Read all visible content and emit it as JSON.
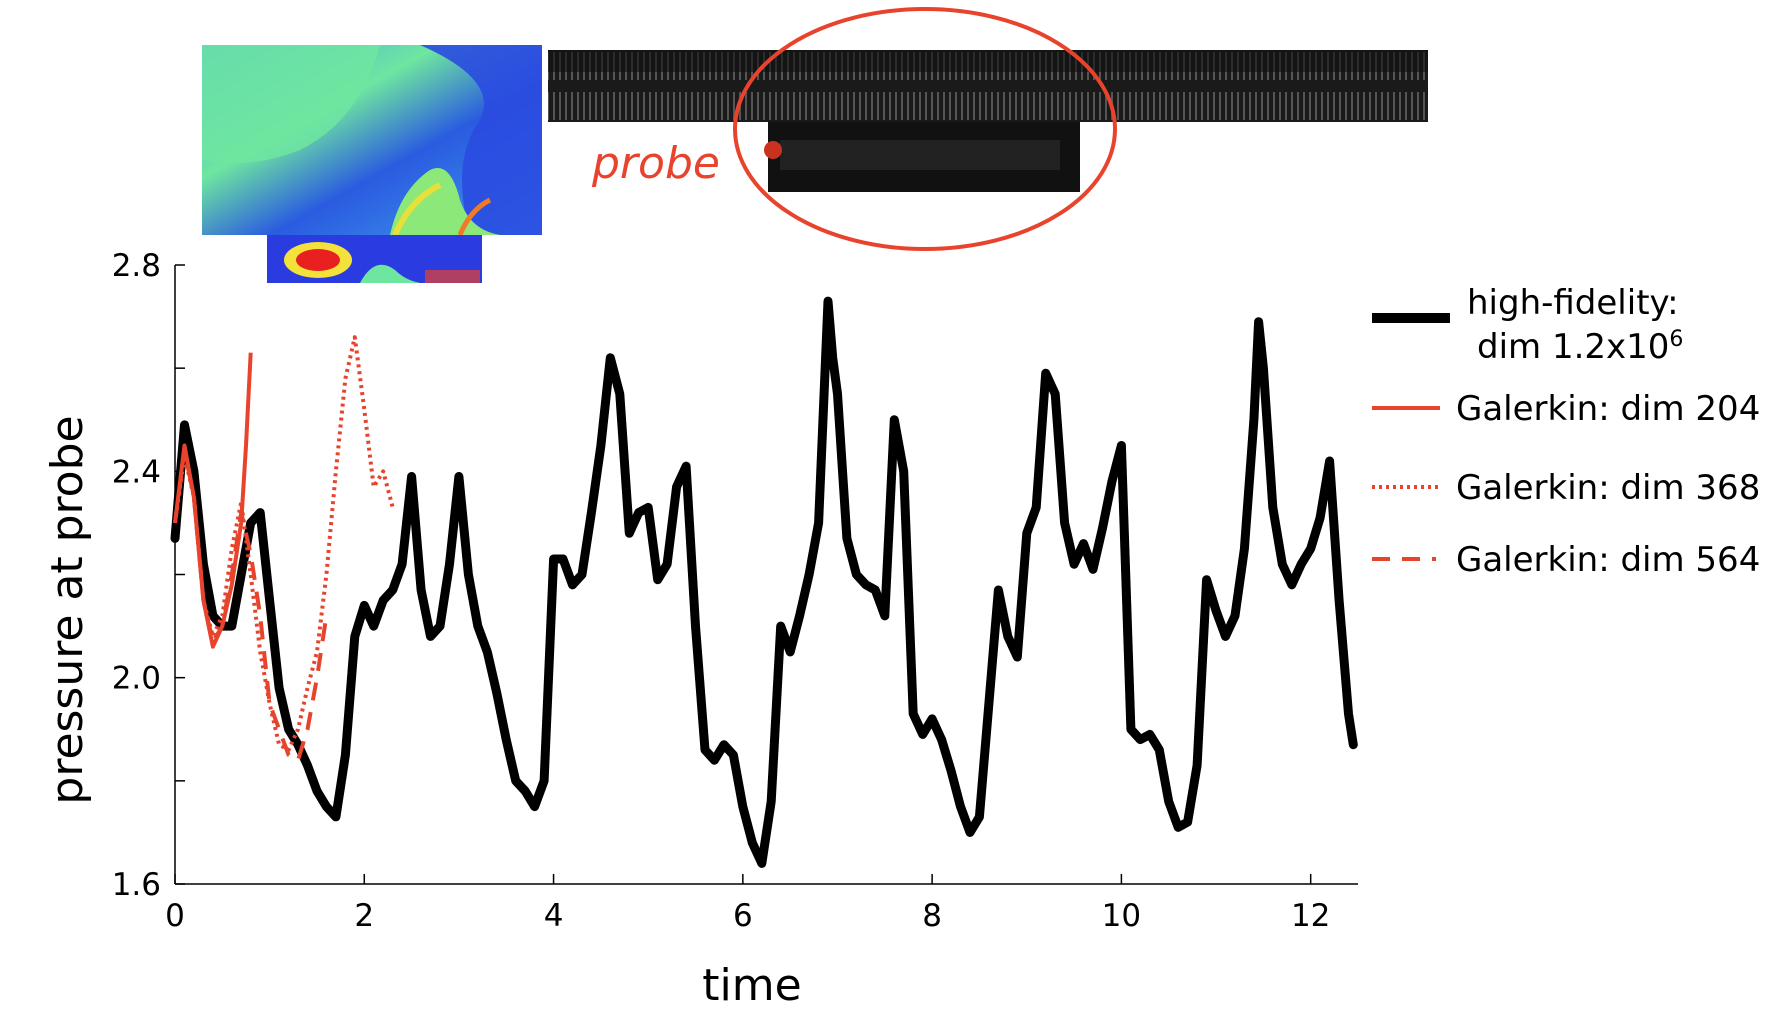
{
  "chart_data": {
    "type": "line",
    "xlabel": "time",
    "ylabel": "pressure at probe",
    "xlim": [
      0,
      12.5
    ],
    "ylim": [
      1.6,
      2.8
    ],
    "xticks": [
      "0",
      "2",
      "4",
      "6",
      "8",
      "10",
      "12"
    ],
    "yticks": [
      "1.6",
      "2.0",
      "2.4",
      "2.8"
    ],
    "yticks_values": [
      1.6,
      2.0,
      2.4,
      2.8
    ],
    "yticks_minor": [
      1.8,
      2.2,
      2.6
    ],
    "legend_position": "right",
    "series": [
      {
        "name": "high-fidelity: dim 1.2x10⁶",
        "legend_line1": "high-fidelity:",
        "legend_line2": "dim 1.2x10",
        "legend_sup": "6",
        "color": "#000000",
        "style": "solid",
        "x": [
          0,
          0.1,
          0.2,
          0.3,
          0.4,
          0.5,
          0.6,
          0.7,
          0.8,
          0.9,
          1.0,
          1.1,
          1.2,
          1.3,
          1.4,
          1.5,
          1.6,
          1.7,
          1.8,
          1.9,
          2.0,
          2.1,
          2.2,
          2.3,
          2.4,
          2.5,
          2.6,
          2.7,
          2.8,
          2.9,
          3.0,
          3.1,
          3.2,
          3.3,
          3.4,
          3.5,
          3.6,
          3.7,
          3.8,
          3.9,
          4.0,
          4.1,
          4.2,
          4.3,
          4.4,
          4.5,
          4.6,
          4.7,
          4.8,
          4.9,
          5.0,
          5.1,
          5.2,
          5.3,
          5.4,
          5.5,
          5.6,
          5.7,
          5.8,
          5.9,
          6.0,
          6.1,
          6.2,
          6.3,
          6.4,
          6.5,
          6.6,
          6.7,
          6.8,
          6.9,
          6.95,
          7.0,
          7.1,
          7.2,
          7.3,
          7.4,
          7.5,
          7.6,
          7.7,
          7.8,
          7.9,
          8.0,
          8.1,
          8.2,
          8.3,
          8.4,
          8.5,
          8.6,
          8.7,
          8.8,
          8.9,
          9.0,
          9.1,
          9.2,
          9.3,
          9.4,
          9.5,
          9.6,
          9.7,
          9.8,
          9.9,
          10.0,
          10.1,
          10.2,
          10.3,
          10.4,
          10.5,
          10.6,
          10.7,
          10.8,
          10.9,
          11.0,
          11.1,
          11.2,
          11.3,
          11.4,
          11.45,
          11.5,
          11.6,
          11.7,
          11.8,
          11.9,
          12.0,
          12.1,
          12.2,
          12.3,
          12.4,
          12.45
        ],
        "values": [
          2.27,
          2.49,
          2.4,
          2.22,
          2.12,
          2.1,
          2.1,
          2.2,
          2.3,
          2.32,
          2.15,
          1.98,
          1.9,
          1.87,
          1.83,
          1.78,
          1.75,
          1.73,
          1.85,
          2.08,
          2.14,
          2.1,
          2.15,
          2.17,
          2.22,
          2.39,
          2.17,
          2.08,
          2.1,
          2.22,
          2.39,
          2.2,
          2.1,
          2.05,
          1.97,
          1.88,
          1.8,
          1.78,
          1.75,
          1.8,
          2.23,
          2.23,
          2.18,
          2.2,
          2.32,
          2.45,
          2.62,
          2.55,
          2.28,
          2.32,
          2.33,
          2.19,
          2.22,
          2.37,
          2.41,
          2.1,
          1.86,
          1.84,
          1.87,
          1.85,
          1.75,
          1.68,
          1.64,
          1.76,
          2.1,
          2.05,
          2.12,
          2.2,
          2.3,
          2.73,
          2.62,
          2.55,
          2.27,
          2.2,
          2.18,
          2.17,
          2.12,
          2.5,
          2.4,
          1.93,
          1.89,
          1.92,
          1.88,
          1.82,
          1.75,
          1.7,
          1.73,
          1.95,
          2.17,
          2.08,
          2.04,
          2.28,
          2.33,
          2.59,
          2.55,
          2.3,
          2.22,
          2.26,
          2.21,
          2.29,
          2.38,
          2.45,
          1.9,
          1.88,
          1.89,
          1.86,
          1.76,
          1.71,
          1.72,
          1.83,
          2.19,
          2.13,
          2.08,
          2.12,
          2.25,
          2.5,
          2.69,
          2.6,
          2.33,
          2.22,
          2.18,
          2.22,
          2.25,
          2.31,
          2.42,
          2.15,
          1.93,
          1.87
        ],
        "render_fill_placeholder": ""
      },
      {
        "name": "Galerkin: dim 204",
        "color": "#e8432d",
        "style": "solid",
        "x": [
          0,
          0.1,
          0.2,
          0.3,
          0.4,
          0.5,
          0.6,
          0.7,
          0.75,
          0.8
        ],
        "values": [
          2.3,
          2.45,
          2.35,
          2.15,
          2.06,
          2.1,
          2.18,
          2.3,
          2.45,
          2.63
        ]
      },
      {
        "name": "Galerkin: dim 368",
        "color": "#e8432d",
        "style": "dotted",
        "x": [
          0,
          0.1,
          0.2,
          0.3,
          0.4,
          0.5,
          0.6,
          0.7,
          0.8,
          0.9,
          1.0,
          1.1,
          1.2,
          1.3,
          1.4,
          1.5,
          1.6,
          1.7,
          1.8,
          1.9,
          2.0,
          2.1,
          2.2,
          2.3
        ],
        "values": [
          2.3,
          2.43,
          2.35,
          2.15,
          2.08,
          2.12,
          2.25,
          2.34,
          2.2,
          2.05,
          1.95,
          1.87,
          1.86,
          1.9,
          1.98,
          2.05,
          2.2,
          2.4,
          2.58,
          2.66,
          2.52,
          2.37,
          2.4,
          2.33
        ]
      },
      {
        "name": "Galerkin: dim 564",
        "color": "#e8432d",
        "style": "dashed",
        "x": [
          0,
          0.1,
          0.2,
          0.3,
          0.4,
          0.5,
          0.6,
          0.7,
          0.8,
          0.9,
          1.0,
          1.1,
          1.2,
          1.3,
          1.4,
          1.5,
          1.6
        ],
        "values": [
          2.3,
          2.44,
          2.35,
          2.15,
          2.07,
          2.1,
          2.2,
          2.32,
          2.24,
          2.12,
          1.95,
          1.9,
          1.85,
          1.84,
          1.9,
          2.0,
          2.12
        ]
      }
    ]
  },
  "annotations": {
    "probe_label": "probe",
    "probe_color": "#e8432d"
  },
  "insets": {
    "flow_colormap": [
      "#2a3be0",
      "#3fa0ee",
      "#6ee6a0",
      "#9cec68",
      "#f4e23a",
      "#f07a2a",
      "#e82020"
    ],
    "geometry_shade": "#111111"
  }
}
